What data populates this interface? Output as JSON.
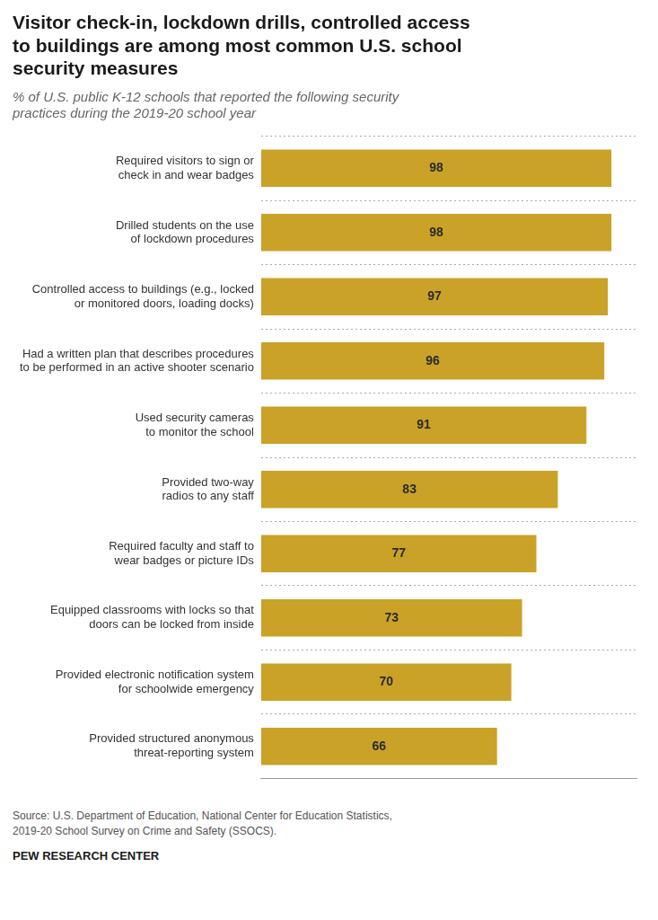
{
  "chart_data": {
    "type": "bar",
    "orientation": "horizontal",
    "title": "Visitor check-in, lockdown drills, controlled access\nto buildings are among most common U.S. school\nsecurity measures",
    "subtitle": "% of U.S. public K-12 schools that reported the following security\npractices during the 2019-20 school year",
    "annotations": [
      "Source: U.S. Department of Education, National Center for Education Statistics,\n2019-20 School Survey on Crime and Safety (SSOCS).",
      "PEW RESEARCH CENTER"
    ],
    "categories": [
      "Required visitors to sign or\ncheck in and wear badges",
      "Drilled students on the use\nof lockdown procedures",
      "Controlled access to buildings (e.g., locked\nor monitored doors, loading docks)",
      "Had a written plan that describes procedures\nto be performed in an active shooter scenario",
      "Used security cameras\nto monitor the school",
      "Provided two-way\nradios to any staff",
      "Required faculty and staff to\nwear badges or picture IDs",
      "Equipped classrooms with locks so that\ndoors can be locked from inside",
      "Provided electronic notification system\nfor schoolwide emergency",
      "Provided structured anonymous\nthreat-reporting system"
    ],
    "values": [
      98,
      98,
      97,
      96,
      91,
      83,
      77,
      73,
      70,
      66
    ],
    "color": "#C9A227",
    "xlim": [
      0,
      105
    ],
    "grid": true,
    "data_labels": true,
    "tick_labels": "y"
  }
}
